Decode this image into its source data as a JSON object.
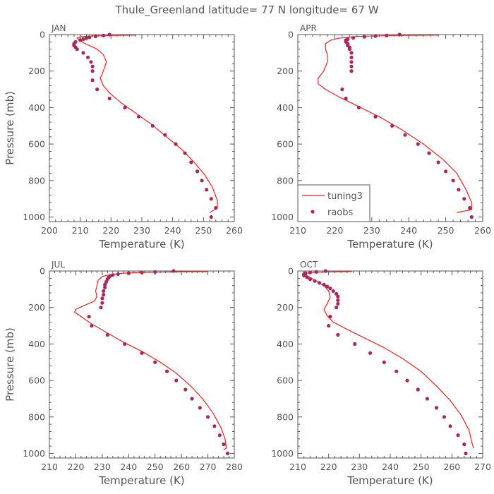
{
  "figure_title": "Thule_Greenland  latitude= 77 N longitude= 67 W",
  "colors": {
    "model": "#e8231e",
    "obs": "#a8285a",
    "axis": "#555555"
  },
  "legend": {
    "model_label": "tuning3",
    "obs_label": "raobs"
  },
  "chart_data": [
    {
      "type": "line",
      "panel": "JAN",
      "xlabel": "Temperature (K)",
      "ylabel": "Pressure (mb)",
      "xlim": [
        200,
        260
      ],
      "ylim": [
        1025,
        0
      ],
      "xticks": [
        200,
        210,
        220,
        230,
        240,
        250,
        260
      ],
      "yticks": [
        0,
        200,
        400,
        600,
        800,
        1000
      ],
      "series": [
        {
          "name": "tuning3",
          "style": "line",
          "points": [
            [
              228,
              3
            ],
            [
              220,
              5
            ],
            [
              213,
              8
            ],
            [
              210,
              12
            ],
            [
              209,
              20
            ],
            [
              210,
              30
            ],
            [
              211,
              45
            ],
            [
              213,
              60
            ],
            [
              215.5,
              80
            ],
            [
              217.5,
              110
            ],
            [
              218.5,
              150
            ],
            [
              217.5,
              200
            ],
            [
              216.5,
              240
            ],
            [
              217.5,
              280
            ],
            [
              219.5,
              320
            ],
            [
              223,
              370
            ],
            [
              228,
              430
            ],
            [
              233,
              490
            ],
            [
              238,
              560
            ],
            [
              243,
              630
            ],
            [
              247,
              700
            ],
            [
              250.5,
              770
            ],
            [
              253,
              840
            ],
            [
              254.5,
              910
            ],
            [
              254.5,
              950
            ],
            [
              252,
              975
            ]
          ]
        },
        {
          "name": "raobs",
          "style": "markers",
          "points": [
            [
              219.5,
              0
            ],
            [
              217.5,
              5
            ],
            [
              215,
              10
            ],
            [
              213,
              15
            ],
            [
              212,
              20
            ],
            [
              211,
              25
            ],
            [
              210,
              30
            ],
            [
              208.5,
              40
            ],
            [
              208,
              50
            ],
            [
              208,
              60
            ],
            [
              208.5,
              70
            ],
            [
              209,
              80
            ],
            [
              211,
              100
            ],
            [
              212.5,
              125
            ],
            [
              213.5,
              150
            ],
            [
              214,
              175
            ],
            [
              214,
              200
            ],
            [
              214,
              250
            ],
            [
              215.5,
              300
            ],
            [
              219.5,
              350
            ],
            [
              224.5,
              400
            ],
            [
              229,
              450
            ],
            [
              233.5,
              500
            ],
            [
              237.5,
              550
            ],
            [
              241,
              600
            ],
            [
              244,
              650
            ],
            [
              246,
              700
            ],
            [
              248,
              750
            ],
            [
              249.5,
              800
            ],
            [
              251,
              850
            ],
            [
              252.5,
              900
            ],
            [
              254,
              950
            ],
            [
              252.5,
              1000
            ]
          ]
        }
      ]
    },
    {
      "type": "line",
      "panel": "APR",
      "xlabel": "Temperature (K)",
      "ylabel": "",
      "xlim": [
        210,
        260
      ],
      "ylim": [
        1025,
        0
      ],
      "xticks": [
        210,
        220,
        230,
        240,
        250,
        260
      ],
      "yticks": [
        0,
        200,
        400,
        600,
        800,
        1000
      ],
      "series": [
        {
          "name": "tuning3",
          "style": "line",
          "points": [
            [
              248,
              3
            ],
            [
              236,
              5
            ],
            [
              226,
              10
            ],
            [
              221,
              20
            ],
            [
              219,
              30
            ],
            [
              217.5,
              50
            ],
            [
              217.5,
              80
            ],
            [
              218,
              110
            ],
            [
              218,
              150
            ],
            [
              217,
              200
            ],
            [
              215.5,
              240
            ],
            [
              215.5,
              270
            ],
            [
              217.5,
              300
            ],
            [
              221,
              340
            ],
            [
              226,
              390
            ],
            [
              232,
              450
            ],
            [
              238,
              520
            ],
            [
              244,
              600
            ],
            [
              249,
              680
            ],
            [
              253,
              760
            ],
            [
              255.5,
              850
            ],
            [
              257,
              920
            ],
            [
              257,
              960
            ],
            [
              253,
              975
            ]
          ]
        },
        {
          "name": "raobs",
          "style": "markers",
          "points": [
            [
              237.5,
              0
            ],
            [
              234,
              5
            ],
            [
              231,
              8
            ],
            [
              228,
              12
            ],
            [
              225,
              18
            ],
            [
              223.5,
              25
            ],
            [
              223,
              30
            ],
            [
              223,
              40
            ],
            [
              223.5,
              50
            ],
            [
              223.5,
              60
            ],
            [
              224,
              70
            ],
            [
              224,
              80
            ],
            [
              224.5,
              100
            ],
            [
              224.5,
              125
            ],
            [
              224.5,
              150
            ],
            [
              224.5,
              175
            ],
            [
              224.5,
              200
            ],
            [
              222,
              300
            ],
            [
              223,
              350
            ],
            [
              226.5,
              400
            ],
            [
              231,
              450
            ],
            [
              235.5,
              500
            ],
            [
              239,
              550
            ],
            [
              242.5,
              600
            ],
            [
              245.5,
              650
            ],
            [
              248,
              700
            ],
            [
              250,
              750
            ],
            [
              252,
              800
            ],
            [
              253.5,
              850
            ],
            [
              255,
              900
            ],
            [
              256.5,
              950
            ],
            [
              257,
              1000
            ]
          ]
        }
      ]
    },
    {
      "type": "line",
      "panel": "JUL",
      "xlabel": "Temperature (K)",
      "ylabel": "Pressure (mb)",
      "xlim": [
        210,
        280
      ],
      "ylim": [
        1025,
        0
      ],
      "xticks": [
        210,
        220,
        230,
        240,
        250,
        260,
        270,
        280
      ],
      "yticks": [
        0,
        200,
        400,
        600,
        800,
        1000
      ],
      "series": [
        {
          "name": "tuning3",
          "style": "line",
          "points": [
            [
              270,
              3
            ],
            [
              255,
              5
            ],
            [
              245,
              8
            ],
            [
              238,
              12
            ],
            [
              233,
              20
            ],
            [
              230,
              30
            ],
            [
              228.5,
              50
            ],
            [
              228,
              80
            ],
            [
              227.5,
              110
            ],
            [
              228,
              140
            ],
            [
              227,
              165
            ],
            [
              223,
              190
            ],
            [
              220,
              210
            ],
            [
              219.5,
              225
            ],
            [
              222,
              250
            ],
            [
              226,
              290
            ],
            [
              232,
              340
            ],
            [
              238,
              390
            ],
            [
              245,
              440
            ],
            [
              252,
              500
            ],
            [
              258,
              560
            ],
            [
              263.5,
              630
            ],
            [
              268,
              700
            ],
            [
              272,
              780
            ],
            [
              275,
              860
            ],
            [
              276.5,
              920
            ],
            [
              277,
              970
            ],
            [
              276,
              980
            ]
          ]
        },
        {
          "name": "raobs",
          "style": "markers",
          "points": [
            [
              257,
              0
            ],
            [
              250,
              5
            ],
            [
              245,
              8
            ],
            [
              240,
              12
            ],
            [
              236,
              17
            ],
            [
              234,
              22
            ],
            [
              233,
              28
            ],
            [
              232.5,
              35
            ],
            [
              232,
              45
            ],
            [
              231.5,
              60
            ],
            [
              231,
              75
            ],
            [
              231,
              90
            ],
            [
              230.5,
              110
            ],
            [
              230.5,
              130
            ],
            [
              230,
              150
            ],
            [
              230,
              175
            ],
            [
              229.5,
              200
            ],
            [
              225,
              250
            ],
            [
              226,
              300
            ],
            [
              232,
              350
            ],
            [
              238.5,
              400
            ],
            [
              245,
              450
            ],
            [
              250,
              500
            ],
            [
              254.5,
              550
            ],
            [
              258,
              600
            ],
            [
              261.5,
              650
            ],
            [
              264,
              700
            ],
            [
              267,
              750
            ],
            [
              270,
              800
            ],
            [
              272.5,
              850
            ],
            [
              274.5,
              900
            ],
            [
              276,
              950
            ],
            [
              277.5,
              1000
            ]
          ]
        }
      ]
    },
    {
      "type": "line",
      "panel": "OCT",
      "xlabel": "Temperature (K)",
      "ylabel": "",
      "xlim": [
        210,
        270
      ],
      "ylim": [
        1025,
        0
      ],
      "xticks": [
        210,
        220,
        230,
        240,
        250,
        260,
        270
      ],
      "yticks": [
        0,
        200,
        400,
        600,
        800,
        1000
      ],
      "series": [
        {
          "name": "tuning3",
          "style": "line",
          "points": [
            [
              227.5,
              3
            ],
            [
              220,
              5
            ],
            [
              215,
              8
            ],
            [
              213,
              12
            ],
            [
              212.5,
              20
            ],
            [
              214,
              35
            ],
            [
              216,
              55
            ],
            [
              218.5,
              80
            ],
            [
              220,
              110
            ],
            [
              220.5,
              145
            ],
            [
              219.5,
              180
            ],
            [
              218.5,
              210
            ],
            [
              219.5,
              245
            ],
            [
              221.5,
              280
            ],
            [
              226,
              320
            ],
            [
              232,
              370
            ],
            [
              238,
              420
            ],
            [
              244,
              480
            ],
            [
              250,
              550
            ],
            [
              255,
              630
            ],
            [
              259.5,
              710
            ],
            [
              263,
              790
            ],
            [
              265.5,
              870
            ],
            [
              266.5,
              940
            ],
            [
              267,
              970
            ]
          ]
        },
        {
          "name": "raobs",
          "style": "markers",
          "points": [
            [
              219,
              0
            ],
            [
              216,
              5
            ],
            [
              214,
              8
            ],
            [
              212.5,
              12
            ],
            [
              212,
              17
            ],
            [
              212,
              25
            ],
            [
              213,
              35
            ],
            [
              214,
              45
            ],
            [
              215.5,
              55
            ],
            [
              217,
              65
            ],
            [
              218.5,
              75
            ],
            [
              219.5,
              85
            ],
            [
              220.5,
              95
            ],
            [
              221.5,
              110
            ],
            [
              222.5,
              125
            ],
            [
              223,
              140
            ],
            [
              223,
              160
            ],
            [
              223,
              180
            ],
            [
              222.5,
              200
            ],
            [
              220.5,
              250
            ],
            [
              220,
              300
            ],
            [
              223,
              350
            ],
            [
              228.5,
              400
            ],
            [
              233.5,
              450
            ],
            [
              238,
              500
            ],
            [
              242,
              550
            ],
            [
              245.5,
              600
            ],
            [
              249,
              650
            ],
            [
              252,
              700
            ],
            [
              255,
              750
            ],
            [
              257.5,
              800
            ],
            [
              259.5,
              850
            ],
            [
              262,
              900
            ],
            [
              264,
              950
            ],
            [
              264.5,
              1000
            ]
          ]
        }
      ]
    }
  ]
}
